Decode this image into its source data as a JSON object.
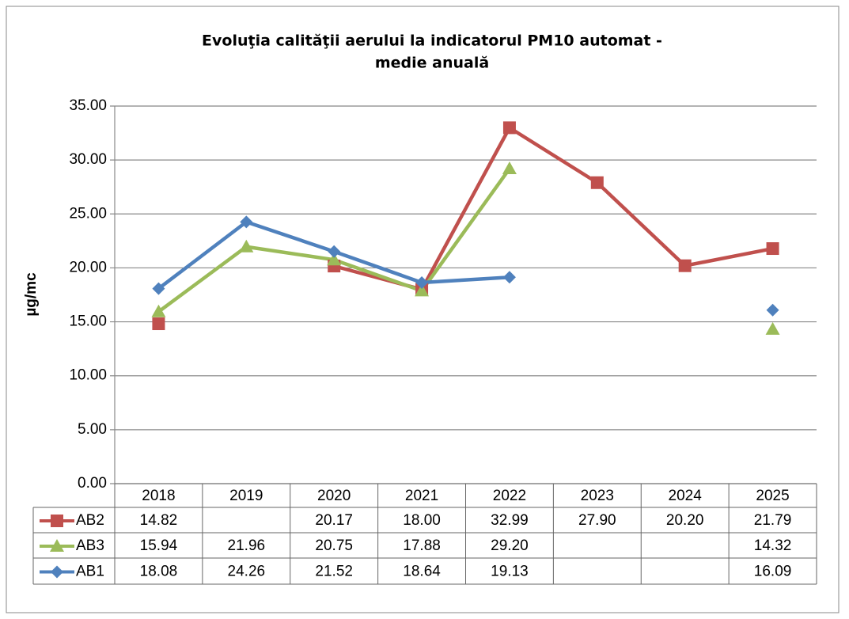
{
  "chart_data": {
    "type": "line",
    "title": [
      "Evoluţia calităţii aerului la indicatorul PM10 automat -",
      "medie anuală"
    ],
    "y_label": "µg/mc",
    "categories": [
      "2018",
      "2019",
      "2020",
      "2021",
      "2022",
      "2023",
      "2024",
      "2025"
    ],
    "series": [
      {
        "name": "AB2",
        "color": "#c0504d",
        "marker": "square",
        "values": [
          14.82,
          null,
          20.17,
          18.0,
          32.99,
          27.9,
          20.2,
          21.79
        ],
        "value_labels": [
          "14.82",
          null,
          "20.17",
          "18.00",
          "32.99",
          "27.90",
          "20.20",
          "21.79"
        ]
      },
      {
        "name": "AB3",
        "color": "#9bbb59",
        "marker": "triangle",
        "values": [
          15.94,
          21.96,
          20.75,
          17.88,
          29.2,
          null,
          null,
          14.32
        ],
        "value_labels": [
          "15.94",
          "21.96",
          "20.75",
          "17.88",
          "29.20",
          null,
          null,
          "14.32"
        ]
      },
      {
        "name": "AB1",
        "color": "#4f81bd",
        "marker": "diamond",
        "values": [
          18.08,
          24.26,
          21.52,
          18.64,
          19.13,
          null,
          null,
          16.09
        ],
        "value_labels": [
          "18.08",
          "24.26",
          "21.52",
          "18.64",
          "19.13",
          null,
          null,
          "16.09"
        ]
      }
    ],
    "ylim": [
      0,
      35
    ],
    "yticks": [
      {
        "value": 0,
        "label": "0.00"
      },
      {
        "value": 5,
        "label": "5.00"
      },
      {
        "value": 10,
        "label": "10.00"
      },
      {
        "value": 15,
        "label": "15.00"
      },
      {
        "value": 20,
        "label": "20.00"
      },
      {
        "value": 25,
        "label": "25.00"
      },
      {
        "value": 30,
        "label": "30.00"
      },
      {
        "value": 35,
        "label": "35.00"
      }
    ],
    "grid": true
  }
}
